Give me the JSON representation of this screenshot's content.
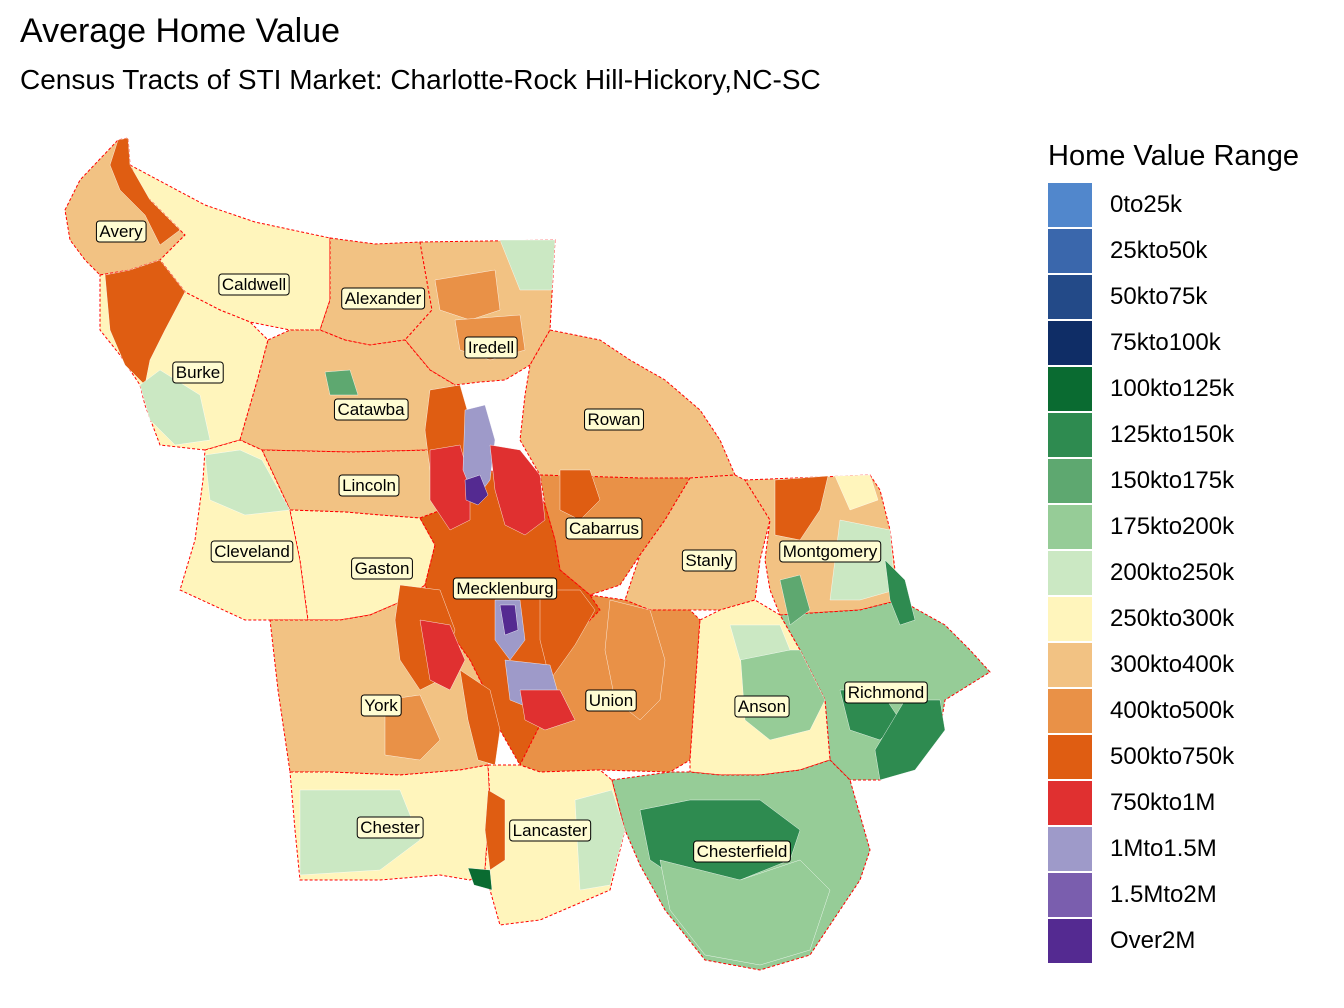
{
  "title": "Average Home Value",
  "subtitle": "Census Tracts of STI Market: Charlotte-Rock Hill-Hickory,NC-SC",
  "legend": {
    "title": "Home Value Range",
    "items": [
      {
        "label": "0to25k",
        "color": "#5187cc"
      },
      {
        "label": "25kto50k",
        "color": "#3a67ac"
      },
      {
        "label": "50kto75k",
        "color": "#234a88"
      },
      {
        "label": "75kto100k",
        "color": "#0f2d66"
      },
      {
        "label": "100kto125k",
        "color": "#0a6b31"
      },
      {
        "label": "125kto150k",
        "color": "#2e8b50"
      },
      {
        "label": "150kto175k",
        "color": "#5ea870"
      },
      {
        "label": "175kto200k",
        "color": "#96cc97"
      },
      {
        "label": "200kto250k",
        "color": "#cbe8c3"
      },
      {
        "label": "250kto300k",
        "color": "#fff5bc"
      },
      {
        "label": "300kto400k",
        "color": "#f2c283"
      },
      {
        "label": "400kto500k",
        "color": "#e99147"
      },
      {
        "label": "500kto750k",
        "color": "#df5d12"
      },
      {
        "label": "750kto1M",
        "color": "#e03030"
      },
      {
        "label": "1Mto1.5M",
        "color": "#9e9ac9"
      },
      {
        "label": "1.5Mto2M",
        "color": "#7a5eae"
      },
      {
        "label": "Over2M",
        "color": "#542a91"
      }
    ]
  },
  "counties": [
    {
      "name": "Avery",
      "fill": "#f2c283"
    },
    {
      "name": "Caldwell",
      "fill": "#fff5bc"
    },
    {
      "name": "Alexander",
      "fill": "#f2c283"
    },
    {
      "name": "Iredell",
      "fill": "#f2c283"
    },
    {
      "name": "Burke",
      "fill": "#fff5bc"
    },
    {
      "name": "Catawba",
      "fill": "#f2c283"
    },
    {
      "name": "Rowan",
      "fill": "#f2c283"
    },
    {
      "name": "Lincoln",
      "fill": "#f2c283"
    },
    {
      "name": "Cabarrus",
      "fill": "#e99147"
    },
    {
      "name": "Cleveland",
      "fill": "#fff5bc"
    },
    {
      "name": "Gaston",
      "fill": "#fff5bc"
    },
    {
      "name": "Stanly",
      "fill": "#f2c283"
    },
    {
      "name": "Montgomery",
      "fill": "#f2c283"
    },
    {
      "name": "Mecklenburg",
      "fill": "#df5d12"
    },
    {
      "name": "Richmond",
      "fill": "#96cc97"
    },
    {
      "name": "York",
      "fill": "#f2c283"
    },
    {
      "name": "Union",
      "fill": "#e99147"
    },
    {
      "name": "Anson",
      "fill": "#fff5bc"
    },
    {
      "name": "Chester",
      "fill": "#fff5bc"
    },
    {
      "name": "Lancaster",
      "fill": "#fff5bc"
    },
    {
      "name": "Chesterfield",
      "fill": "#96cc97"
    }
  ],
  "colors": {
    "county_border": "#ff0000",
    "label_fill": "#fffcd2"
  }
}
